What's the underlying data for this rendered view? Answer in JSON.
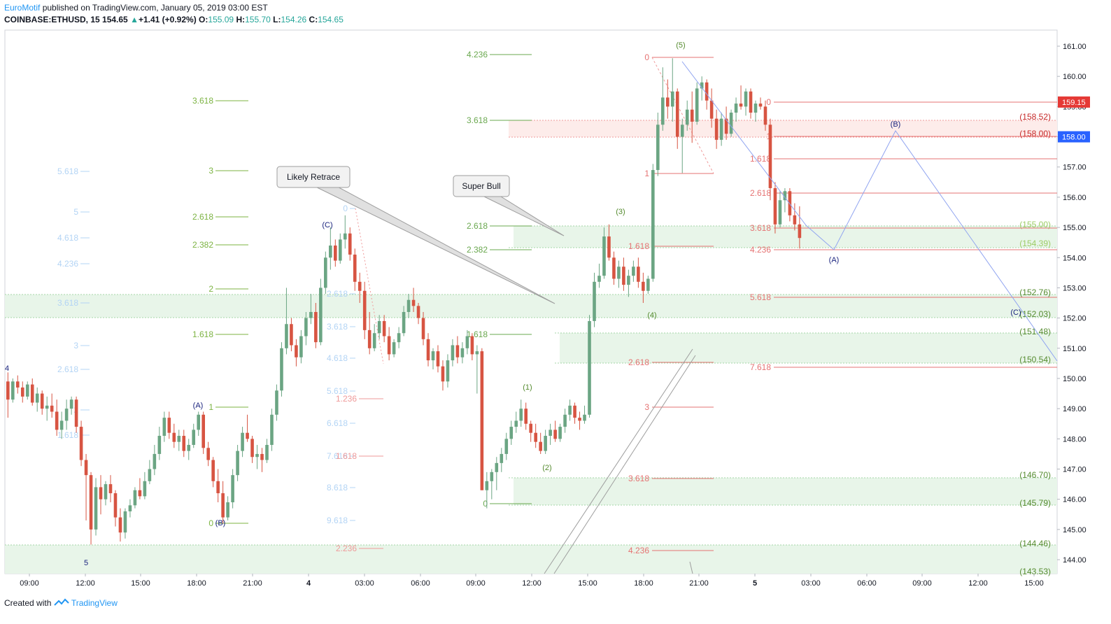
{
  "header": {
    "author": "EuroMotif",
    "published": "published on TradingView.com, January 05, 2019 03:00 EST",
    "symbol": "COINBASE:ETHUSD, 15",
    "last": "154.65",
    "change": "+1.41 (+0.92%)",
    "o_label": "O:",
    "o": "155.09",
    "h_label": "H:",
    "h": "155.70",
    "l_label": "L:",
    "l": "154.26",
    "c_label": "C:",
    "c": "154.65",
    "up_arrow": "▲"
  },
  "footer": {
    "created": "Created with",
    "brand": "TradingView",
    "logo_icon": "tradingview-logo-icon"
  },
  "colors": {
    "up": "#6ba583",
    "down": "#d75442",
    "fibGreen": "#4caf50",
    "fibRed": "#e53935",
    "fibBlue": "#90caf9",
    "wave": "#1a237e",
    "zone": "#e8f5e9",
    "path": "#90a4f0",
    "axisBadge": "#2962ff",
    "badgeRed": "#e53935"
  },
  "chart_data": {
    "type": "candlestick",
    "symbol": "COINBASE:ETHUSD",
    "interval": "15",
    "ylim": [
      143.3,
      161.5
    ],
    "y_ticks": [
      "144.00",
      "145.00",
      "146.00",
      "147.00",
      "148.00",
      "149.00",
      "150.00",
      "151.00",
      "152.00",
      "153.00",
      "154.00",
      "155.00",
      "156.00",
      "157.00",
      "158.00",
      "159.00",
      "160.00",
      "161.00"
    ],
    "x_ticks": [
      "09:00",
      "12:00",
      "15:00",
      "18:00",
      "21:00",
      "4",
      "03:00",
      "06:00",
      "09:00",
      "12:00",
      "15:00",
      "18:00",
      "21:00",
      "5",
      "03:00",
      "06:00",
      "09:00",
      "12:00",
      "15:00"
    ],
    "price_badges": [
      "159.15",
      "158.00"
    ],
    "candles": [
      [
        149.9,
        150.2,
        148.7,
        149.3
      ],
      [
        149.3,
        150.0,
        149.2,
        149.9
      ],
      [
        149.9,
        150.1,
        149.5,
        149.7
      ],
      [
        149.7,
        149.9,
        149.2,
        149.4
      ],
      [
        149.4,
        149.9,
        149.3,
        149.8
      ],
      [
        149.8,
        150.0,
        149.1,
        149.2
      ],
      [
        149.2,
        149.7,
        148.9,
        149.5
      ],
      [
        149.5,
        149.6,
        148.8,
        149.0
      ],
      [
        149.0,
        149.4,
        148.6,
        149.1
      ],
      [
        149.1,
        149.5,
        148.7,
        148.9
      ],
      [
        148.9,
        149.3,
        148.1,
        148.3
      ],
      [
        148.3,
        148.9,
        148.0,
        148.6
      ],
      [
        148.6,
        149.3,
        148.3,
        149.0
      ],
      [
        149.0,
        149.4,
        148.8,
        149.3
      ],
      [
        149.3,
        149.4,
        148.2,
        148.4
      ],
      [
        148.4,
        148.6,
        147.1,
        147.3
      ],
      [
        147.3,
        147.5,
        145.3,
        146.8
      ],
      [
        146.8,
        146.9,
        144.5,
        145.0
      ],
      [
        145.0,
        146.7,
        144.8,
        146.4
      ],
      [
        146.4,
        146.8,
        145.5,
        146.0
      ],
      [
        146.0,
        146.6,
        145.8,
        146.5
      ],
      [
        146.5,
        146.8,
        145.9,
        146.2
      ],
      [
        146.2,
        146.3,
        145.1,
        145.4
      ],
      [
        145.4,
        145.7,
        144.6,
        144.9
      ],
      [
        144.9,
        145.7,
        144.7,
        145.6
      ],
      [
        145.6,
        146.0,
        145.4,
        145.8
      ],
      [
        145.8,
        146.4,
        145.7,
        146.3
      ],
      [
        146.3,
        146.7,
        146.0,
        146.1
      ],
      [
        146.1,
        146.9,
        146.0,
        146.6
      ],
      [
        146.6,
        147.3,
        146.5,
        147.0
      ],
      [
        147.0,
        147.8,
        146.8,
        147.5
      ],
      [
        147.5,
        148.4,
        147.3,
        148.1
      ],
      [
        148.1,
        148.9,
        147.9,
        148.7
      ],
      [
        148.7,
        148.9,
        148.0,
        148.2
      ],
      [
        148.2,
        148.5,
        147.7,
        147.9
      ],
      [
        147.9,
        148.3,
        147.6,
        148.1
      ],
      [
        148.1,
        148.3,
        147.4,
        147.6
      ],
      [
        147.6,
        148.0,
        147.3,
        147.8
      ],
      [
        147.8,
        148.5,
        147.7,
        148.3
      ],
      [
        148.3,
        148.9,
        148.1,
        148.8
      ],
      [
        148.8,
        148.9,
        147.5,
        147.7
      ],
      [
        147.7,
        147.9,
        147.1,
        147.3
      ],
      [
        147.3,
        147.4,
        146.4,
        146.6
      ],
      [
        146.6,
        147.0,
        145.9,
        146.2
      ],
      [
        146.2,
        146.6,
        145.2,
        145.4
      ],
      [
        145.4,
        146.1,
        145.3,
        145.9
      ],
      [
        145.9,
        147.0,
        145.7,
        146.8
      ],
      [
        146.8,
        147.8,
        146.6,
        147.6
      ],
      [
        147.6,
        148.4,
        147.4,
        148.2
      ],
      [
        148.2,
        148.8,
        147.9,
        148.0
      ],
      [
        148.0,
        148.1,
        147.2,
        147.4
      ],
      [
        147.4,
        147.8,
        147.0,
        147.5
      ],
      [
        147.5,
        147.7,
        146.9,
        147.3
      ],
      [
        147.3,
        148.0,
        147.2,
        147.8
      ],
      [
        147.8,
        149.0,
        147.6,
        148.8
      ],
      [
        148.8,
        149.8,
        148.6,
        149.6
      ],
      [
        149.6,
        151.2,
        149.4,
        151.0
      ],
      [
        151.0,
        153.0,
        150.8,
        151.8
      ],
      [
        151.8,
        152.0,
        150.9,
        151.1
      ],
      [
        151.1,
        151.3,
        150.4,
        150.7
      ],
      [
        150.7,
        151.6,
        150.5,
        151.4
      ],
      [
        151.4,
        152.2,
        151.1,
        152.0
      ],
      [
        152.0,
        152.8,
        151.8,
        152.2
      ],
      [
        152.2,
        152.5,
        151.0,
        151.2
      ],
      [
        151.2,
        153.3,
        151.1,
        153.0
      ],
      [
        153.0,
        154.2,
        152.8,
        154.0
      ],
      [
        154.0,
        155.0,
        153.6,
        154.4
      ],
      [
        154.4,
        154.6,
        153.7,
        153.9
      ],
      [
        153.9,
        154.8,
        153.8,
        154.6
      ],
      [
        154.6,
        155.4,
        154.3,
        154.8
      ],
      [
        154.8,
        155.0,
        153.9,
        154.1
      ],
      [
        154.1,
        154.3,
        152.9,
        153.2
      ],
      [
        153.2,
        153.5,
        152.5,
        152.9
      ],
      [
        152.9,
        153.2,
        151.3,
        151.6
      ],
      [
        151.6,
        152.2,
        150.8,
        151.0
      ],
      [
        151.0,
        151.8,
        150.9,
        151.5
      ],
      [
        151.5,
        152.1,
        151.3,
        151.9
      ],
      [
        151.9,
        152.1,
        151.2,
        151.4
      ],
      [
        151.4,
        151.7,
        150.6,
        150.8
      ],
      [
        150.8,
        151.3,
        150.7,
        151.2
      ],
      [
        151.2,
        151.7,
        151.0,
        151.5
      ],
      [
        151.5,
        152.4,
        151.4,
        152.2
      ],
      [
        152.2,
        152.8,
        152.0,
        152.6
      ],
      [
        152.6,
        153.0,
        152.2,
        152.4
      ],
      [
        152.4,
        152.5,
        151.8,
        152.0
      ],
      [
        152.0,
        152.2,
        151.1,
        151.3
      ],
      [
        151.3,
        151.5,
        150.4,
        150.6
      ],
      [
        150.6,
        151.0,
        150.3,
        150.9
      ],
      [
        150.9,
        151.1,
        150.2,
        150.4
      ],
      [
        150.4,
        150.6,
        149.6,
        149.9
      ],
      [
        149.9,
        150.8,
        149.7,
        150.6
      ],
      [
        150.6,
        151.3,
        150.4,
        151.1
      ],
      [
        151.1,
        151.4,
        150.5,
        150.7
      ],
      [
        150.7,
        151.2,
        150.5,
        151.0
      ],
      [
        151.0,
        151.6,
        150.8,
        151.4
      ],
      [
        151.4,
        151.5,
        150.6,
        150.8
      ],
      [
        150.8,
        151.1,
        149.5,
        150.9
      ],
      [
        150.9,
        151.0,
        146.3,
        146.3
      ],
      [
        146.3,
        146.9,
        145.7,
        146.6
      ],
      [
        146.6,
        147.0,
        146.0,
        146.9
      ],
      [
        146.9,
        147.4,
        146.3,
        147.2
      ],
      [
        147.2,
        147.7,
        146.9,
        147.5
      ],
      [
        147.5,
        148.2,
        147.3,
        148.0
      ],
      [
        148.0,
        148.6,
        147.8,
        148.4
      ],
      [
        148.4,
        148.9,
        148.2,
        148.6
      ],
      [
        148.6,
        149.3,
        148.4,
        149.0
      ],
      [
        149.0,
        149.2,
        148.3,
        148.5
      ],
      [
        148.5,
        148.6,
        147.9,
        148.2
      ],
      [
        148.2,
        148.5,
        147.7,
        147.9
      ],
      [
        147.9,
        148.2,
        147.5,
        147.6
      ],
      [
        147.6,
        148.3,
        147.5,
        148.1
      ],
      [
        148.1,
        148.5,
        147.8,
        148.3
      ],
      [
        148.3,
        148.6,
        147.9,
        148.0
      ],
      [
        148.0,
        148.5,
        147.9,
        148.4
      ],
      [
        148.4,
        149.0,
        148.2,
        148.8
      ],
      [
        148.8,
        149.3,
        148.6,
        149.1
      ],
      [
        149.1,
        149.2,
        148.5,
        148.7
      ],
      [
        148.7,
        148.9,
        148.3,
        148.6
      ],
      [
        148.6,
        149.1,
        148.5,
        148.8
      ],
      [
        148.8,
        152.1,
        148.7,
        151.9
      ],
      [
        151.9,
        153.5,
        151.7,
        153.2
      ],
      [
        153.2,
        153.8,
        153.0,
        153.4
      ],
      [
        153.4,
        155.0,
        153.3,
        154.7
      ],
      [
        154.7,
        155.1,
        153.9,
        154.0
      ],
      [
        154.0,
        154.2,
        153.1,
        153.3
      ],
      [
        153.3,
        153.9,
        153.0,
        153.7
      ],
      [
        153.7,
        154.0,
        152.9,
        153.1
      ],
      [
        153.1,
        153.6,
        152.7,
        153.4
      ],
      [
        153.4,
        153.9,
        153.2,
        153.7
      ],
      [
        153.7,
        154.0,
        153.0,
        153.2
      ],
      [
        153.2,
        153.5,
        152.5,
        152.9
      ],
      [
        152.9,
        153.4,
        152.8,
        153.3
      ],
      [
        153.3,
        157.1,
        153.2,
        156.9
      ],
      [
        156.9,
        158.8,
        156.7,
        158.4
      ],
      [
        158.4,
        160.3,
        158.2,
        159.3
      ],
      [
        159.3,
        159.9,
        158.6,
        159.0
      ],
      [
        159.0,
        160.6,
        158.5,
        159.5
      ],
      [
        159.5,
        159.6,
        157.6,
        158.0
      ],
      [
        158.0,
        158.6,
        156.8,
        158.4
      ],
      [
        158.4,
        159.2,
        158.2,
        158.9
      ],
      [
        158.9,
        159.5,
        157.8,
        158.5
      ],
      [
        158.5,
        159.8,
        158.4,
        159.6
      ],
      [
        159.6,
        160.0,
        159.2,
        159.8
      ],
      [
        159.8,
        159.9,
        158.9,
        159.2
      ],
      [
        159.2,
        159.6,
        158.3,
        158.6
      ],
      [
        158.6,
        158.9,
        157.6,
        157.9
      ],
      [
        157.9,
        158.8,
        157.7,
        158.6
      ],
      [
        158.6,
        159.0,
        157.9,
        158.1
      ],
      [
        158.1,
        158.9,
        158.0,
        158.8
      ],
      [
        158.8,
        159.3,
        158.5,
        159.1
      ],
      [
        159.1,
        159.7,
        158.9,
        159.0
      ],
      [
        159.0,
        159.6,
        158.7,
        159.5
      ],
      [
        159.5,
        159.6,
        158.6,
        158.8
      ],
      [
        158.8,
        159.2,
        158.5,
        159.1
      ],
      [
        159.1,
        159.3,
        158.9,
        159.0
      ],
      [
        159.0,
        159.2,
        158.2,
        158.4
      ],
      [
        158.4,
        158.6,
        155.9,
        156.3
      ],
      [
        156.3,
        156.5,
        154.8,
        155.1
      ],
      [
        155.1,
        156.2,
        155.0,
        155.9
      ],
      [
        155.9,
        156.3,
        155.5,
        156.2
      ],
      [
        156.2,
        156.3,
        155.2,
        155.4
      ],
      [
        155.4,
        155.8,
        154.9,
        155.1
      ],
      [
        155.1,
        155.7,
        154.3,
        154.65
      ]
    ]
  },
  "fib_green_mid": {
    "labels": [
      "4.236",
      "3.618",
      "2.618",
      "2.382",
      "1.618",
      "0"
    ],
    "prices": [
      160.7,
      158.4,
      155.0,
      154.3,
      151.1,
      145.7
    ]
  },
  "fib_green_left": {
    "labels": [
      "3.618",
      "3",
      "2.618",
      "2.382",
      "2",
      "1.618",
      "1",
      "0"
    ],
    "prices": [
      159.0,
      157.3,
      156.2,
      155.3,
      153.8,
      152.3,
      149.0,
      145.2
    ]
  },
  "fib_blue_left": {
    "labels": [
      "5.618",
      "5",
      "4.618",
      "4.236",
      "3.618",
      "3",
      "2.618",
      "2",
      "1.618"
    ],
    "prices": [
      157.3,
      156.5,
      155.9,
      155.0,
      153.6,
      152.3,
      151.4,
      149.0,
      147.9
    ]
  },
  "fib_blue_mid": {
    "labels": [
      "0",
      "2.618",
      "3.618",
      "4.618",
      "5.618",
      "6.618",
      "7.618",
      "8.618",
      "9.618"
    ],
    "prices": [
      155.8,
      152.9,
      151.6,
      150.2,
      148.9,
      147.6,
      146.2,
      145.0,
      143.6
    ]
  },
  "fib_red_small": {
    "labels": [
      "1.236",
      "1.618",
      "2.236"
    ],
    "prices": [
      149.6,
      147.8,
      144.0
    ]
  },
  "fib_red_center": {
    "labels": [
      "0",
      "1",
      "1.618",
      "2.618",
      "3",
      "3.618",
      "4.236"
    ],
    "prices": [
      160.6,
      156.8,
      154.4,
      150.4,
      148.8,
      146.7,
      144.0
    ]
  },
  "fib_red_right": {
    "labels": [
      "0",
      "1",
      "1.618",
      "2.618",
      "3.618",
      "4.236",
      "5.618",
      "7.618"
    ],
    "prices": [
      159.2,
      158.0,
      157.3,
      156.1,
      155.0,
      154.4,
      152.8,
      150.4
    ]
  },
  "zone_labels": [
    "(158.52)",
    "(158.00)",
    "(155.00)",
    "(154.39)",
    "(152.76)",
    "(152.03)",
    "(151.48)",
    "(150.54)",
    "(146.70)",
    "(145.79)",
    "(144.46)",
    "(143.53)"
  ],
  "wave_labels": [
    "(A)",
    "(B)",
    "(C)",
    "(A)",
    "(B)",
    "(C)",
    "(1)",
    "(2)",
    "(3)",
    "(4)",
    "(5)",
    "4",
    "5"
  ],
  "callouts": {
    "retrace": "Likely Retrace",
    "bull": "Super Bull"
  }
}
